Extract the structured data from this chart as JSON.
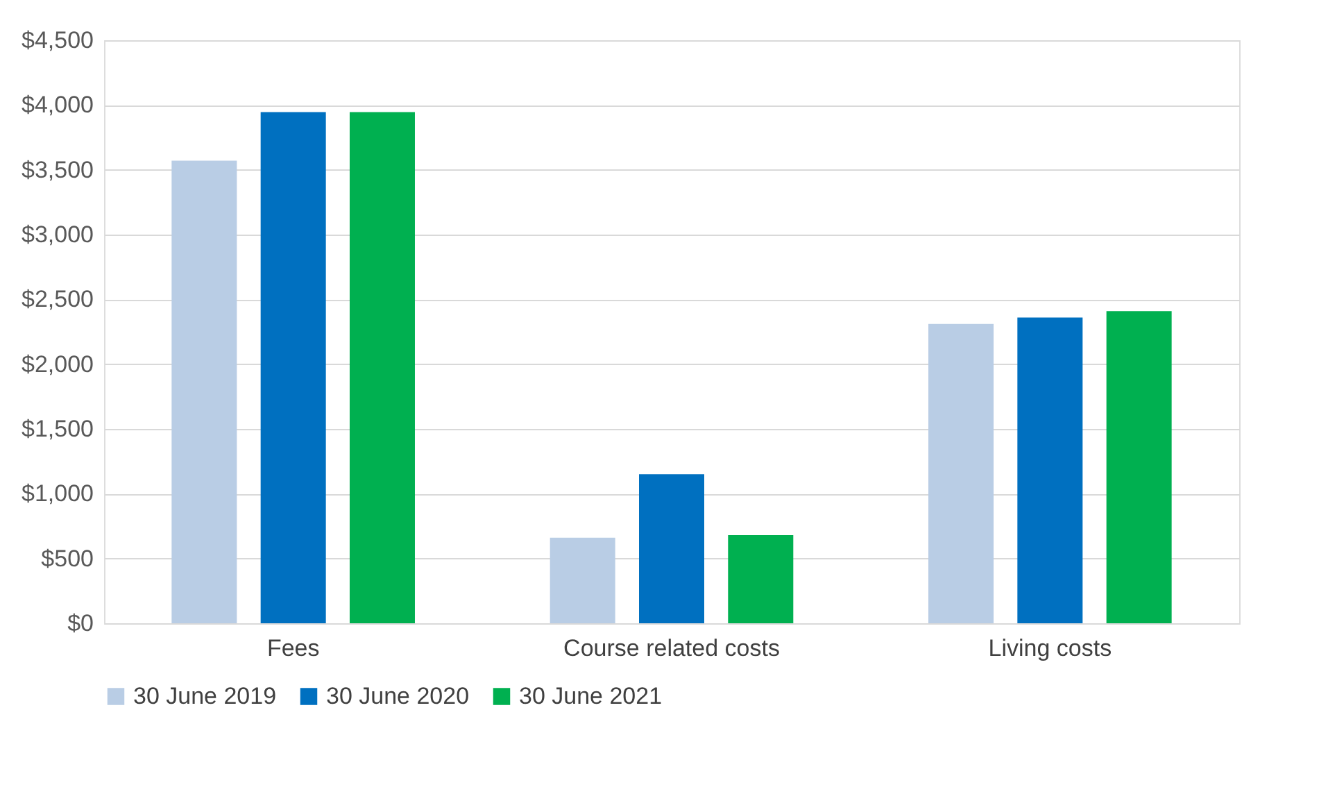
{
  "chart_data": {
    "type": "bar",
    "categories": [
      "Fees",
      "Course related costs",
      "Living costs"
    ],
    "series": [
      {
        "name": "30 June 2019",
        "color": "#b9cde5",
        "values": [
          3570,
          660,
          2310
        ]
      },
      {
        "name": "30 June 2020",
        "color": "#0070c0",
        "values": [
          3945,
          1150,
          2360
        ]
      },
      {
        "name": "30 June 2021",
        "color": "#00b050",
        "values": [
          3945,
          680,
          2410
        ]
      }
    ],
    "ylim": [
      0,
      4500
    ],
    "yticks": [
      {
        "value": 0,
        "label": "$0"
      },
      {
        "value": 500,
        "label": "$500"
      },
      {
        "value": 1000,
        "label": "$1,000"
      },
      {
        "value": 1500,
        "label": "$1,500"
      },
      {
        "value": 2000,
        "label": "$2,000"
      },
      {
        "value": 2500,
        "label": "$2,500"
      },
      {
        "value": 3000,
        "label": "$3,000"
      },
      {
        "value": 3500,
        "label": "$3,500"
      },
      {
        "value": 4000,
        "label": "$4,000"
      },
      {
        "value": 4500,
        "label": "$4,500"
      }
    ],
    "grid": "y",
    "legend": "bottom"
  }
}
